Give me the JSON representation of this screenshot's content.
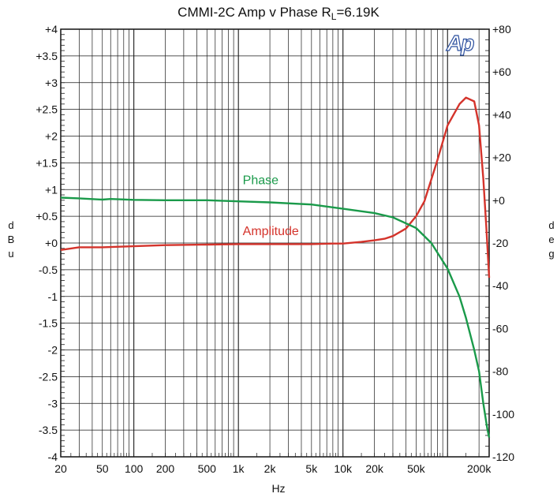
{
  "title_main": "CMMI-2C  Amp v Phase R",
  "title_sub": "L",
  "title_tail": "=6.19K",
  "logo_text": "Ap",
  "y_left_unit_letters": [
    "d",
    "B",
    "u"
  ],
  "y_right_unit_letters": [
    "d",
    "e",
    "g"
  ],
  "colors": {
    "phase": "#1a9a4a",
    "amplitude": "#d4332b",
    "grid": "#1a1a1a",
    "logo": "#2b4f9e"
  },
  "chart_data": {
    "type": "line",
    "title": "CMMI-2C  Amp v Phase RL=6.19K",
    "xlabel": "Hz",
    "ylabel_left": "dBu",
    "ylabel_right": "deg",
    "x_scale": "log",
    "xlim": [
      20,
      250000
    ],
    "ylim_left": [
      -4,
      4
    ],
    "ylim_right": [
      -120,
      80
    ],
    "grid": true,
    "x_ticks": [
      {
        "value": 20,
        "label": "20"
      },
      {
        "value": 50,
        "label": "50"
      },
      {
        "value": 100,
        "label": "100"
      },
      {
        "value": 200,
        "label": "200"
      },
      {
        "value": 500,
        "label": "500"
      },
      {
        "value": 1000,
        "label": "1k"
      },
      {
        "value": 2000,
        "label": "2k"
      },
      {
        "value": 5000,
        "label": "5k"
      },
      {
        "value": 10000,
        "label": "10k"
      },
      {
        "value": 20000,
        "label": "20k"
      },
      {
        "value": 50000,
        "label": "50k"
      },
      {
        "value": 200000,
        "label": "200k"
      }
    ],
    "y_left_ticks": [
      {
        "value": 4,
        "label": "+4"
      },
      {
        "value": 3.5,
        "label": "+3.5"
      },
      {
        "value": 3,
        "label": "+3"
      },
      {
        "value": 2.5,
        "label": "+2.5"
      },
      {
        "value": 2,
        "label": "+2"
      },
      {
        "value": 1.5,
        "label": "+1.5"
      },
      {
        "value": 1,
        "label": "+1"
      },
      {
        "value": 0.5,
        "label": "+0.5"
      },
      {
        "value": 0,
        "label": "+0"
      },
      {
        "value": -0.5,
        "label": "-0.5"
      },
      {
        "value": -1,
        "label": "-1"
      },
      {
        "value": -1.5,
        "label": "-1.5"
      },
      {
        "value": -2,
        "label": "-2"
      },
      {
        "value": -2.5,
        "label": "-2.5"
      },
      {
        "value": -3,
        "label": "-3"
      },
      {
        "value": -3.5,
        "label": "-3.5"
      },
      {
        "value": -4,
        "label": "-4"
      }
    ],
    "y_right_ticks": [
      {
        "value": 80,
        "label": "+80"
      },
      {
        "value": 60,
        "label": "+60"
      },
      {
        "value": 40,
        "label": "+40"
      },
      {
        "value": 20,
        "label": "+20"
      },
      {
        "value": 0,
        "label": "+0"
      },
      {
        "value": -20,
        "label": "-20"
      },
      {
        "value": -40,
        "label": "-40"
      },
      {
        "value": -60,
        "label": "-60"
      },
      {
        "value": -80,
        "label": "-80"
      },
      {
        "value": -100,
        "label": "-100"
      },
      {
        "value": -120,
        "label": "-120"
      }
    ],
    "series": [
      {
        "name": "Amplitude",
        "axis": "left",
        "x": [
          20,
          30,
          50,
          100,
          200,
          500,
          1000,
          2000,
          5000,
          8000,
          10000,
          15000,
          20000,
          25000,
          30000,
          40000,
          50000,
          60000,
          80000,
          100000,
          130000,
          150000,
          180000,
          200000,
          220000,
          235000,
          250000
        ],
        "y": [
          -0.13,
          -0.08,
          -0.08,
          -0.06,
          -0.04,
          -0.03,
          -0.02,
          -0.02,
          -0.02,
          -0.01,
          -0.01,
          0.02,
          0.05,
          0.08,
          0.13,
          0.27,
          0.5,
          0.78,
          1.55,
          2.2,
          2.6,
          2.72,
          2.65,
          2.2,
          1.2,
          0.3,
          -0.65
        ]
      },
      {
        "name": "Phase",
        "axis": "right",
        "x": [
          20,
          30,
          50,
          60,
          100,
          200,
          500,
          1000,
          2000,
          5000,
          10000,
          20000,
          30000,
          50000,
          70000,
          100000,
          130000,
          150000,
          180000,
          200000,
          220000,
          240000,
          250000
        ],
        "y": [
          1.2,
          0.9,
          0.3,
          0.6,
          0.2,
          0,
          0,
          -0.5,
          -1,
          -2,
          -4,
          -6,
          -8,
          -13,
          -20,
          -32,
          -45,
          -55,
          -70,
          -80,
          -95,
          -107,
          -111
        ]
      }
    ],
    "annotations": [
      {
        "text": "Phase",
        "series": "Phase",
        "x": 1100,
        "y_left": 1.1
      },
      {
        "text": "Amplitude",
        "series": "Amplitude",
        "x": 1100,
        "y_left": 0.15
      }
    ]
  }
}
